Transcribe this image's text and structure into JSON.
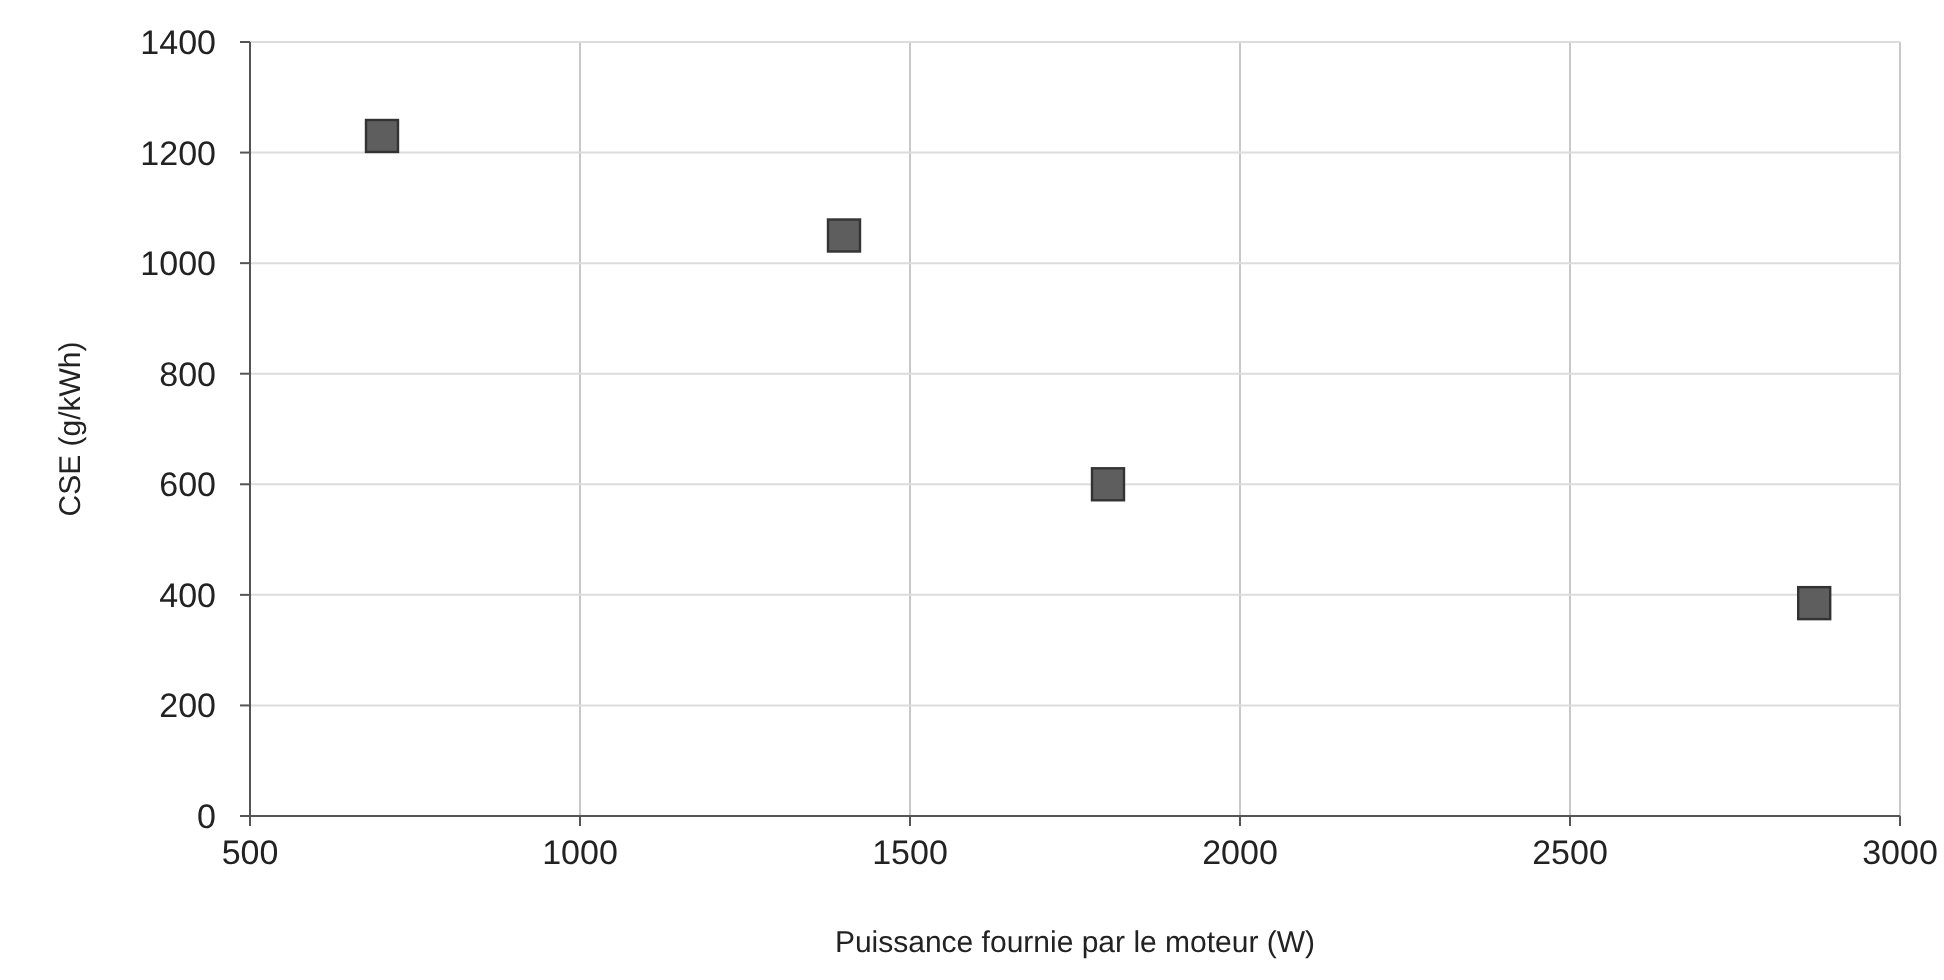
{
  "chart_data": {
    "type": "scatter",
    "xlabel": "Puissance fournie par le moteur (W)",
    "ylabel": "CSE (g/kWh)",
    "x": [
      700,
      1400,
      1800,
      2870
    ],
    "values": [
      1230,
      1050,
      600,
      385
    ],
    "color": "#5e5e5e",
    "marker": "square",
    "grid": true,
    "xlim": [
      500,
      3000
    ],
    "xticks": [
      500,
      1000,
      1500,
      2000,
      2500,
      3000
    ],
    "ylim": [
      0,
      1400
    ],
    "yticks": [
      0,
      200,
      400,
      600,
      800,
      1000,
      1200,
      1400
    ]
  }
}
